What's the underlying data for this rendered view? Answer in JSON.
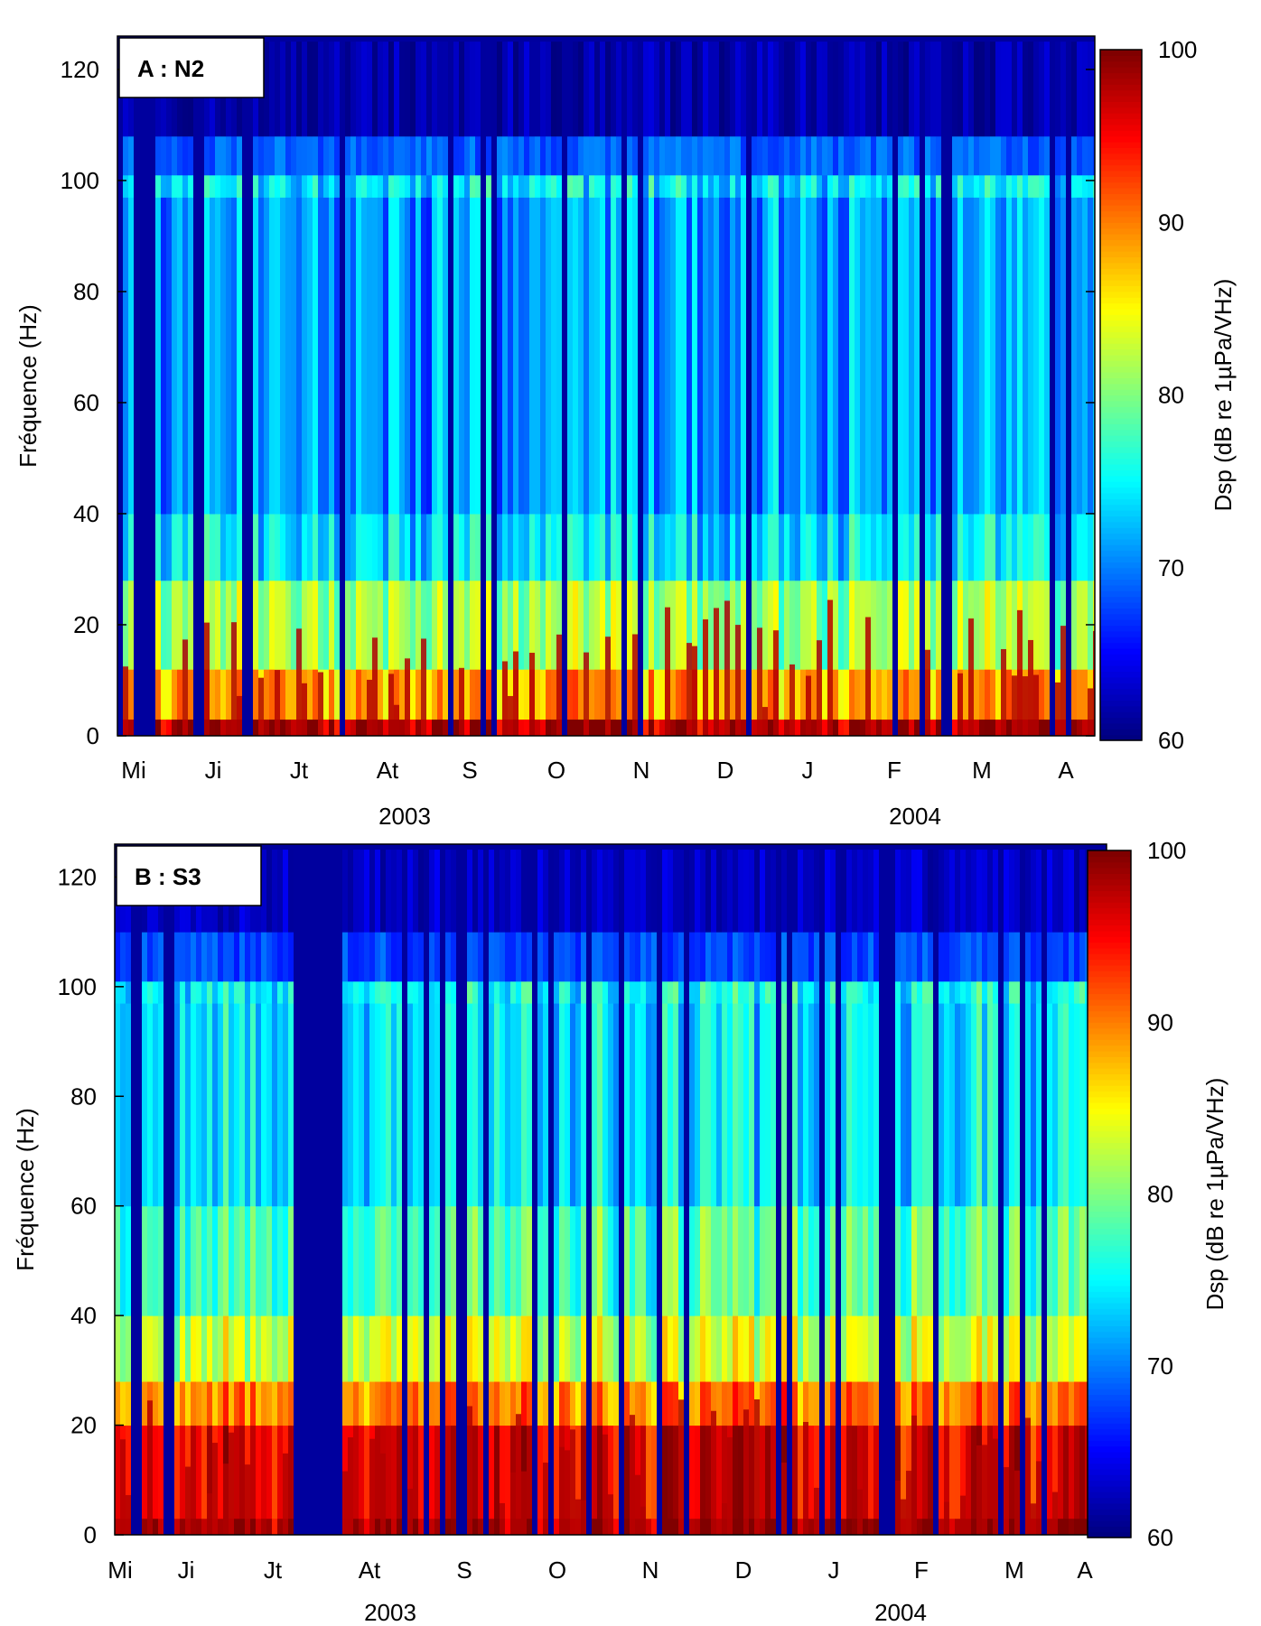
{
  "chart_data": [
    {
      "type": "heatmap",
      "panel_label": "A : N2",
      "ylabel": "Fréquence (Hz)",
      "yticks": [
        0,
        20,
        40,
        60,
        80,
        100,
        120
      ],
      "ylim": [
        0,
        125
      ],
      "month_labels": [
        "Mi",
        "Ji",
        "Jt",
        "At",
        "S",
        "O",
        "N",
        "D",
        "J",
        "F",
        "M",
        "A"
      ],
      "year_labels": [
        "2003",
        "2004"
      ],
      "colorbar": {
        "label": "Dsp (dB re 1µPa/VHz)",
        "ticks": [
          60,
          70,
          80,
          90,
          100
        ],
        "range": [
          60,
          100
        ],
        "colormap": "jet"
      },
      "bands": [
        {
          "f_min": 0,
          "f_max": 3,
          "level_db": 98
        },
        {
          "f_min": 3,
          "f_max": 12,
          "level_db": 88
        },
        {
          "f_min": 12,
          "f_max": 28,
          "level_db": 81
        },
        {
          "f_min": 28,
          "f_max": 40,
          "level_db": 74
        },
        {
          "f_min": 40,
          "f_max": 97,
          "level_db": 71
        },
        {
          "f_min": 97,
          "f_max": 101,
          "level_db": 74
        },
        {
          "f_min": 101,
          "f_max": 108,
          "level_db": 68
        },
        {
          "f_min": 108,
          "f_max": 125,
          "level_db": 61
        }
      ],
      "gaps_months": [
        [
          0.0,
          0.2
        ],
        [
          0.7,
          0.83
        ]
      ]
    },
    {
      "type": "heatmap",
      "panel_label": "B : S3",
      "ylabel": "Fréquence (Hz)",
      "yticks": [
        0,
        20,
        40,
        60,
        80,
        100,
        120
      ],
      "ylim": [
        0,
        125
      ],
      "month_labels": [
        "Mi",
        "Ji",
        "Jt",
        "At",
        "S",
        "O",
        "N",
        "D",
        "J",
        "F",
        "M",
        "A"
      ],
      "year_labels": [
        "2003",
        "2004"
      ],
      "colorbar": {
        "label": "Dsp (dB re 1µPa/VHz)",
        "ticks": [
          60,
          70,
          80,
          90,
          100
        ],
        "range": [
          60,
          100
        ],
        "colormap": "jet"
      },
      "bands": [
        {
          "f_min": 0,
          "f_max": 3,
          "level_db": 99
        },
        {
          "f_min": 3,
          "f_max": 20,
          "level_db": 96
        },
        {
          "f_min": 20,
          "f_max": 28,
          "level_db": 90
        },
        {
          "f_min": 28,
          "f_max": 40,
          "level_db": 83
        },
        {
          "f_min": 40,
          "f_max": 60,
          "level_db": 78
        },
        {
          "f_min": 60,
          "f_max": 97,
          "level_db": 74
        },
        {
          "f_min": 97,
          "f_max": 101,
          "level_db": 75
        },
        {
          "f_min": 101,
          "f_max": 110,
          "level_db": 67
        },
        {
          "f_min": 110,
          "f_max": 125,
          "level_db": 62
        }
      ],
      "gaps_months": [
        [
          0.45,
          0.6
        ],
        [
          1.95,
          2.45
        ],
        [
          7.55,
          7.65
        ],
        [
          8.65,
          8.8
        ]
      ]
    }
  ]
}
